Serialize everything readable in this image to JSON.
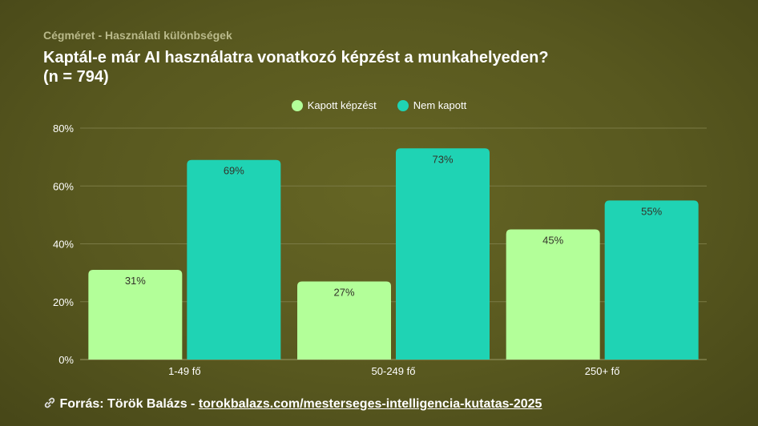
{
  "header": {
    "subtitle": "Cégméret - Használati különbségek",
    "title": "Kaptál-e már AI használatra vonatkozó képzést a munkahelyeden?",
    "sample": "(n = 794)"
  },
  "footer": {
    "icon": "link-icon",
    "prefix": "Forrás: Török Balázs - ",
    "link": "torokbalazs.com/mesterseges-intelligencia-kutatas-2025"
  },
  "colors": {
    "kapott": "#b3ff99",
    "nem_kapott": "#1fd3b4",
    "grid": "#7a7a45",
    "axis_text": "#ffffff",
    "label_text": "#33332a"
  },
  "chart_data": {
    "type": "bar",
    "categories": [
      "1-49 fő",
      "50-249 fő",
      "250+ fő"
    ],
    "series": [
      {
        "name": "Kapott képzést",
        "values": [
          31,
          27,
          45
        ],
        "labels": [
          "31%",
          "27%",
          "45%"
        ]
      },
      {
        "name": "Nem kapott",
        "values": [
          69,
          73,
          55
        ],
        "labels": [
          "69%",
          "73%",
          "55%"
        ]
      }
    ],
    "ylim": [
      0,
      80
    ],
    "yticks": [
      0,
      20,
      40,
      60,
      80
    ],
    "ytick_labels": [
      "0%",
      "20%",
      "40%",
      "60%",
      "80%"
    ],
    "grid": true,
    "legend_position": "top-center"
  }
}
